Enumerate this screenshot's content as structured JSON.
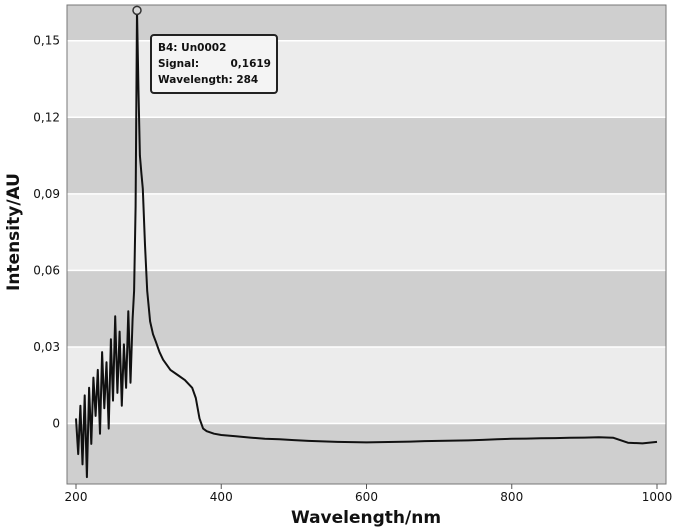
{
  "chart_data": {
    "type": "line",
    "xlabel": "Wavelength/nm",
    "ylabel": "Intensity/AU",
    "xlim": [
      200,
      1000
    ],
    "ylim": [
      -0.0237,
      0.164
    ],
    "x_ticks": [
      200,
      400,
      600,
      800,
      1000
    ],
    "x_tick_labels": [
      "200",
      "400",
      "600",
      "800",
      "1000"
    ],
    "y_ticks": [
      0,
      0.03,
      0.06,
      0.09,
      0.12,
      0.15
    ],
    "y_tick_labels": [
      "0",
      "0,03",
      "0,06",
      "0,09",
      "0,12",
      "0,15"
    ],
    "grid": "horizontal bands",
    "band_colors": [
      "#cfcfcf",
      "#ececec"
    ],
    "line_color": "#111111",
    "series": [
      {
        "x": [
          200,
          203,
          206,
          209,
          212,
          215,
          218,
          221,
          224,
          227,
          230,
          233,
          236,
          239,
          242,
          245,
          248,
          251,
          254,
          257,
          260,
          263,
          266,
          269,
          272,
          275,
          278,
          280,
          282,
          284,
          286,
          288,
          290,
          292,
          295,
          298,
          302,
          306,
          310,
          315,
          320,
          330,
          340,
          350,
          360,
          365,
          370,
          375,
          380,
          390,
          400,
          420,
          440,
          460,
          480,
          500,
          520,
          540,
          560,
          580,
          600,
          620,
          640,
          660,
          680,
          700,
          720,
          740,
          760,
          780,
          800,
          820,
          840,
          860,
          880,
          900,
          920,
          940,
          960,
          980,
          1000
        ],
        "y": [
          0.002,
          -0.012,
          0.007,
          -0.016,
          0.011,
          -0.021,
          0.014,
          -0.008,
          0.018,
          0.003,
          0.021,
          -0.004,
          0.028,
          0.006,
          0.024,
          -0.002,
          0.033,
          0.009,
          0.042,
          0.012,
          0.036,
          0.007,
          0.031,
          0.014,
          0.044,
          0.016,
          0.041,
          0.052,
          0.085,
          0.1619,
          0.13,
          0.105,
          0.098,
          0.092,
          0.07,
          0.052,
          0.04,
          0.035,
          0.032,
          0.028,
          0.025,
          0.021,
          0.019,
          0.017,
          0.014,
          0.01,
          0.002,
          -0.002,
          -0.003,
          -0.004,
          -0.0045,
          -0.005,
          -0.0055,
          -0.006,
          -0.0062,
          -0.0065,
          -0.0068,
          -0.007,
          -0.0072,
          -0.0073,
          -0.0074,
          -0.0073,
          -0.0072,
          -0.0071,
          -0.0069,
          -0.0068,
          -0.0067,
          -0.0066,
          -0.0064,
          -0.0062,
          -0.006,
          -0.0059,
          -0.0058,
          -0.0057,
          -0.0056,
          -0.0055,
          -0.0054,
          -0.0056,
          -0.0075,
          -0.0078,
          -0.0072
        ]
      }
    ],
    "annotation": {
      "x": 284,
      "y": 0.1619,
      "lines": [
        "B4: Un0002",
        "Signal:",
        "0,1619",
        "Wavelength: 284"
      ]
    }
  }
}
